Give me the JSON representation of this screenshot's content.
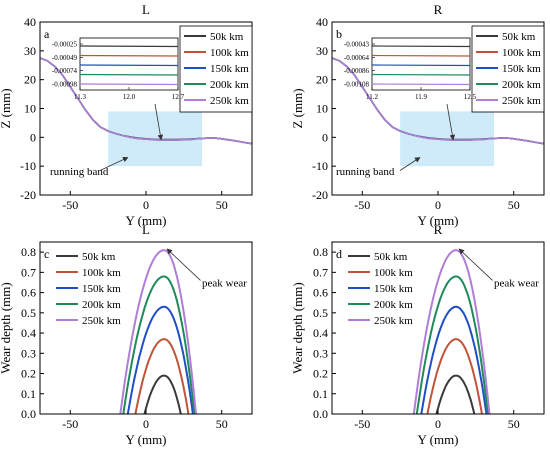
{
  "chart_data": [
    {
      "panel": "a",
      "title": "L",
      "type": "line",
      "xlabel": "Y (mm)",
      "ylabel": "Z (mm)",
      "xlim": [
        -70,
        70
      ],
      "ylim": [
        -20,
        40
      ],
      "xticks": [
        -50,
        0,
        50
      ],
      "yticks": [
        -20,
        -10,
        0,
        10,
        20,
        30,
        40
      ],
      "series_names": [
        "50k km",
        "100k km",
        "150k km",
        "200k km",
        "250k km"
      ],
      "annotation": "running band",
      "inset": {
        "xticks": [
          "11.3",
          "12.0",
          "12.7"
        ],
        "yticks": [
          "-0.00025",
          "-0.00049",
          "-0.00074",
          "-0.00098"
        ]
      }
    },
    {
      "panel": "b",
      "title": "R",
      "type": "line",
      "xlabel": "Y (mm)",
      "ylabel": "Z (mm)",
      "xlim": [
        -70,
        70
      ],
      "ylim": [
        -20,
        40
      ],
      "xticks": [
        -50,
        0,
        50
      ],
      "yticks": [
        -20,
        -10,
        0,
        10,
        20,
        30,
        40
      ],
      "series_names": [
        "50k km",
        "100k km",
        "150k km",
        "200k km",
        "250k km"
      ],
      "annotation": "running band",
      "inset": {
        "xticks": [
          "11.2",
          "11.9",
          "12.5"
        ],
        "yticks": [
          "-0.00043",
          "-0.00064",
          "-0.00086",
          "-0.00108"
        ]
      }
    },
    {
      "panel": "c",
      "title": "L",
      "type": "line",
      "xlabel": "Y (mm)",
      "ylabel": "Wear depth (mm)",
      "xlim": [
        -70,
        70
      ],
      "ylim": [
        0,
        0.85
      ],
      "xticks": [
        -50,
        0,
        50
      ],
      "yticks": [
        0.0,
        0.1,
        0.2,
        0.3,
        0.4,
        0.5,
        0.6,
        0.7,
        0.8
      ],
      "series": [
        {
          "name": "50k km",
          "peak_x": 12,
          "peak": 0.19,
          "x_start": -1,
          "x_end": 23
        },
        {
          "name": "100k km",
          "peak_x": 12,
          "peak": 0.37,
          "x_start": -7,
          "x_end": 28
        },
        {
          "name": "150k km",
          "peak_x": 12,
          "peak": 0.53,
          "x_start": -12,
          "x_end": 31
        },
        {
          "name": "200k km",
          "peak_x": 12,
          "peak": 0.68,
          "x_start": -15,
          "x_end": 32
        },
        {
          "name": "250k km",
          "peak_x": 12,
          "peak": 0.81,
          "x_start": -17,
          "x_end": 33
        }
      ],
      "annotation": "peak wear"
    },
    {
      "panel": "d",
      "title": "R",
      "type": "line",
      "xlabel": "Y (mm)",
      "ylabel": "Wear depth (mm)",
      "xlim": [
        -70,
        70
      ],
      "ylim": [
        0,
        0.85
      ],
      "xticks": [
        -50,
        0,
        50
      ],
      "yticks": [
        0.0,
        0.1,
        0.2,
        0.3,
        0.4,
        0.5,
        0.6,
        0.7,
        0.8
      ],
      "series": [
        {
          "name": "50k km",
          "peak_x": 12,
          "peak": 0.19,
          "x_start": -1,
          "x_end": 24
        },
        {
          "name": "100k km",
          "peak_x": 12,
          "peak": 0.37,
          "x_start": -7,
          "x_end": 29
        },
        {
          "name": "150k km",
          "peak_x": 12,
          "peak": 0.53,
          "x_start": -11,
          "x_end": 32
        },
        {
          "name": "200k km",
          "peak_x": 12,
          "peak": 0.68,
          "x_start": -14,
          "x_end": 33
        },
        {
          "name": "250k km",
          "peak_x": 12,
          "peak": 0.81,
          "x_start": -16,
          "x_end": 34
        }
      ],
      "annotation": "peak wear"
    }
  ],
  "profile_shape": {
    "x": [
      -70,
      -65,
      -60,
      -55,
      -50,
      -45,
      -40,
      -35,
      -30,
      -25,
      -20,
      -15,
      -10,
      -5,
      0,
      5,
      10,
      15,
      20,
      25,
      30,
      35,
      40,
      45,
      50,
      55,
      60,
      65,
      70
    ],
    "z": [
      27.5,
      26.5,
      24.5,
      21.5,
      17.5,
      13.5,
      9.5,
      6,
      3.5,
      2.2,
      1.3,
      0.6,
      0.1,
      -0.3,
      -0.5,
      -0.7,
      -0.8,
      -0.8,
      -0.8,
      -0.7,
      -0.6,
      -0.4,
      -0.3,
      -0.2,
      -0.5,
      -0.9,
      -1.3,
      -1.8,
      -2.2
    ]
  },
  "colors": [
    "#3a3a3a",
    "#c0543a",
    "#1f4fc4",
    "#1f8a5a",
    "#b07ed8"
  ]
}
